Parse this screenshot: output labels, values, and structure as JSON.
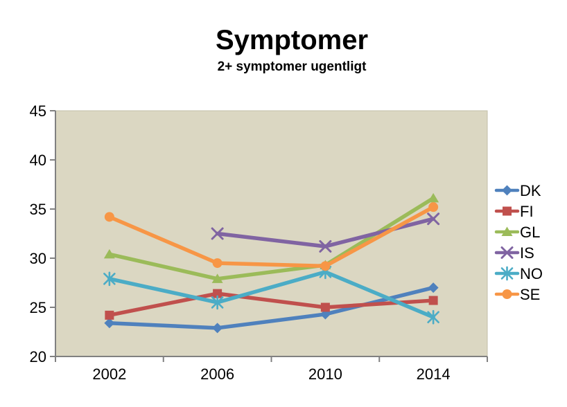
{
  "chart_data": {
    "type": "line",
    "title": "Symptomer",
    "subtitle": "2+ symptomer ugentligt",
    "categories": [
      "2002",
      "2006",
      "2010",
      "2014"
    ],
    "series": [
      {
        "name": "DK",
        "color": "#4F81BD",
        "marker": "diamond",
        "values": [
          23.4,
          22.9,
          24.3,
          27.0
        ]
      },
      {
        "name": "FI",
        "color": "#C0504D",
        "marker": "square",
        "values": [
          24.2,
          26.4,
          25.0,
          25.7
        ]
      },
      {
        "name": "GL",
        "color": "#9BBB59",
        "marker": "triangle",
        "values": [
          30.4,
          27.9,
          29.3,
          36.1
        ]
      },
      {
        "name": "IS",
        "color": "#8064A2",
        "marker": "x",
        "values": [
          null,
          32.5,
          31.2,
          34.0
        ]
      },
      {
        "name": "NO",
        "color": "#4BACC6",
        "marker": "asterisk",
        "values": [
          27.9,
          25.5,
          28.6,
          24.0
        ]
      },
      {
        "name": "SE",
        "color": "#F79646",
        "marker": "circle",
        "values": [
          34.2,
          29.5,
          29.2,
          35.2
        ]
      }
    ],
    "ylim": [
      20,
      45
    ],
    "ytick_step": 5,
    "ytick_labels": [
      "20",
      "25",
      "30",
      "35",
      "40",
      "45"
    ],
    "grid": false,
    "legend_position": "right",
    "colors": {
      "plot_background": "#DBD7C2",
      "plot_border": "#C3BFAA",
      "axis_line": "#808080",
      "label_color": "#000000",
      "page_background": "#FFFFFF"
    }
  }
}
